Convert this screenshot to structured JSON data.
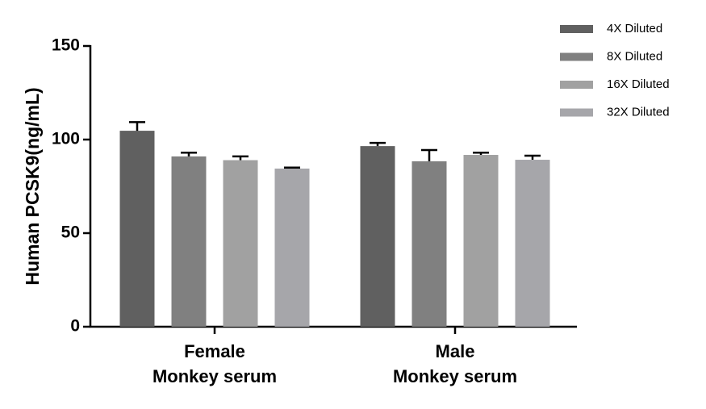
{
  "chart_data": {
    "type": "bar",
    "y_label": "Human PCSK9(ng/mL)",
    "categories": [
      [
        "Female",
        "Monkey serum"
      ],
      [
        "Male",
        "Monkey serum"
      ]
    ],
    "series": [
      {
        "name": "4X Diluted",
        "color": "#606060",
        "values": [
          104.7,
          96.5
        ],
        "errors": [
          4.6,
          1.7
        ]
      },
      {
        "name": "8X Diluted",
        "color": "#808080",
        "values": [
          91,
          88.4
        ],
        "errors": [
          2,
          6
        ]
      },
      {
        "name": "16X Diluted",
        "color": "#a1a1a1",
        "values": [
          89,
          91.8
        ],
        "errors": [
          2,
          1.2
        ]
      },
      {
        "name": "32X Diluted",
        "color": "#a6a6aa",
        "values": [
          84.5,
          89.2
        ],
        "errors": [
          0.5,
          2.2
        ]
      }
    ],
    "ylim": [
      0,
      150
    ],
    "yticks": [
      0,
      50,
      100,
      150
    ]
  }
}
